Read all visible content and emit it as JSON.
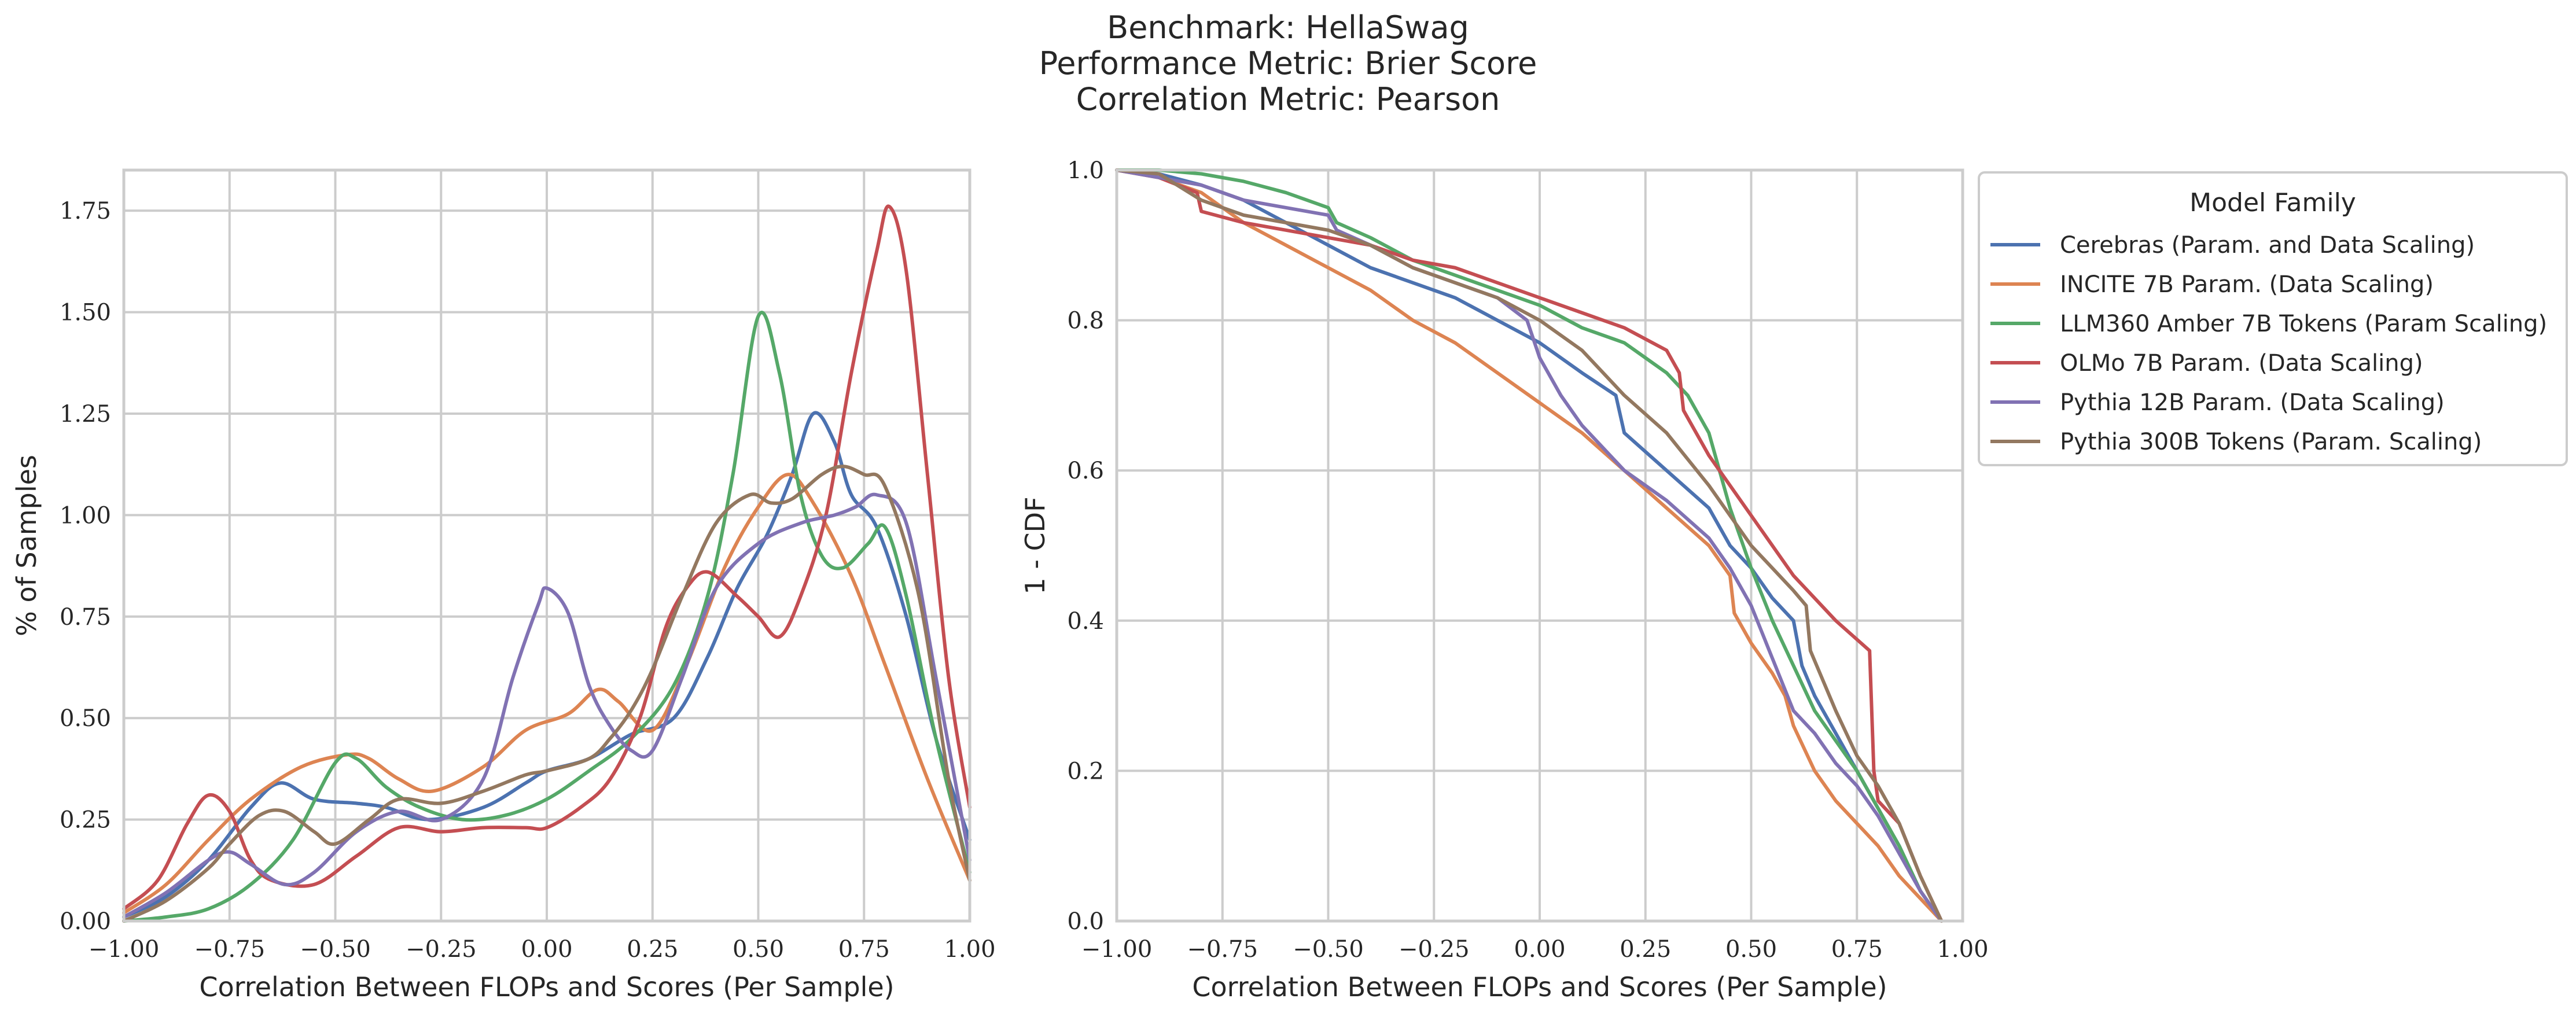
{
  "figure": {
    "title_lines": [
      "Benchmark: HellaSwag",
      "Performance Metric: Brier Score",
      "Correlation Metric: Pearson"
    ]
  },
  "colors": {
    "Cerebras (Param. and Data Scaling)": "#4c72b0",
    "INCITE 7B Param. (Data Scaling)": "#dd8452",
    "LLM360 Amber 7B Tokens (Param Scaling)": "#55a868",
    "OLMo 7B Param. (Data Scaling)": "#c44e52",
    "Pythia 12B Param. (Data Scaling)": "#8172b3",
    "Pythia 300B Tokens (Param. Scaling)": "#937860"
  },
  "legend": {
    "title": "Model Family",
    "placement": "right of second panel"
  },
  "chart_data": [
    {
      "type": "line",
      "xlabel": "Correlation Between FLOPs and Scores (Per Sample)",
      "ylabel": "% of Samples",
      "xlim": [
        -1.0,
        1.0
      ],
      "ylim": [
        0.0,
        1.85
      ],
      "xticks": [
        -1.0,
        -0.75,
        -0.5,
        -0.25,
        0.0,
        0.25,
        0.5,
        0.75,
        1.0
      ],
      "xtick_labels": [
        "−1.00",
        "−0.75",
        "−0.50",
        "−0.25",
        "0.00",
        "0.25",
        "0.50",
        "0.75",
        "1.00"
      ],
      "yticks": [
        0.0,
        0.25,
        0.5,
        0.75,
        1.0,
        1.25,
        1.5,
        1.75
      ],
      "ytick_labels": [
        "0.00",
        "0.25",
        "0.50",
        "0.75",
        "1.00",
        "1.25",
        "1.50",
        "1.75"
      ],
      "grid": true,
      "series": [
        {
          "name": "Cerebras (Param. and Data Scaling)",
          "x": [
            -1.0,
            -0.9,
            -0.8,
            -0.7,
            -0.63,
            -0.55,
            -0.45,
            -0.38,
            -0.28,
            -0.15,
            -0.05,
            0.0,
            0.1,
            0.2,
            0.3,
            0.38,
            0.45,
            0.52,
            0.58,
            0.63,
            0.68,
            0.72,
            0.78,
            0.85,
            0.92,
            1.0
          ],
          "y": [
            0.01,
            0.06,
            0.15,
            0.28,
            0.34,
            0.3,
            0.29,
            0.28,
            0.25,
            0.28,
            0.34,
            0.37,
            0.4,
            0.46,
            0.5,
            0.65,
            0.82,
            0.95,
            1.1,
            1.25,
            1.18,
            1.05,
            0.97,
            0.75,
            0.45,
            0.2
          ]
        },
        {
          "name": "INCITE 7B Param. (Data Scaling)",
          "x": [
            -1.0,
            -0.9,
            -0.8,
            -0.7,
            -0.58,
            -0.47,
            -0.42,
            -0.35,
            -0.27,
            -0.15,
            -0.05,
            0.05,
            0.12,
            0.17,
            0.25,
            0.33,
            0.42,
            0.5,
            0.57,
            0.63,
            0.72,
            0.8,
            0.9,
            1.0
          ],
          "y": [
            0.02,
            0.09,
            0.2,
            0.3,
            0.38,
            0.41,
            0.4,
            0.35,
            0.32,
            0.38,
            0.47,
            0.51,
            0.57,
            0.54,
            0.47,
            0.63,
            0.87,
            1.02,
            1.1,
            1.03,
            0.85,
            0.63,
            0.35,
            0.1
          ]
        },
        {
          "name": "LLM360 Amber 7B Tokens (Param Scaling)",
          "x": [
            -1.0,
            -0.9,
            -0.8,
            -0.7,
            -0.6,
            -0.5,
            -0.45,
            -0.38,
            -0.3,
            -0.2,
            -0.1,
            0.0,
            0.1,
            0.2,
            0.3,
            0.38,
            0.44,
            0.5,
            0.55,
            0.6,
            0.65,
            0.7,
            0.76,
            0.8,
            0.85,
            0.92,
            1.0
          ],
          "y": [
            0.0,
            0.01,
            0.03,
            0.09,
            0.2,
            0.39,
            0.4,
            0.33,
            0.28,
            0.25,
            0.26,
            0.3,
            0.37,
            0.45,
            0.58,
            0.8,
            1.1,
            1.49,
            1.35,
            1.05,
            0.9,
            0.87,
            0.93,
            0.97,
            0.8,
            0.45,
            0.12
          ]
        },
        {
          "name": "OLMo 7B Param. (Data Scaling)",
          "x": [
            -1.0,
            -0.92,
            -0.85,
            -0.8,
            -0.75,
            -0.7,
            -0.65,
            -0.55,
            -0.45,
            -0.35,
            -0.25,
            -0.15,
            -0.05,
            0.0,
            0.08,
            0.15,
            0.22,
            0.28,
            0.33,
            0.38,
            0.45,
            0.5,
            0.55,
            0.6,
            0.66,
            0.72,
            0.78,
            0.81,
            0.85,
            0.9,
            0.95,
            1.0
          ],
          "y": [
            0.03,
            0.1,
            0.24,
            0.31,
            0.27,
            0.15,
            0.1,
            0.09,
            0.16,
            0.23,
            0.22,
            0.23,
            0.23,
            0.23,
            0.28,
            0.35,
            0.5,
            0.72,
            0.82,
            0.86,
            0.8,
            0.75,
            0.7,
            0.8,
            1.0,
            1.35,
            1.65,
            1.76,
            1.6,
            1.1,
            0.6,
            0.28
          ]
        },
        {
          "name": "Pythia 12B Param. (Data Scaling)",
          "x": [
            -1.0,
            -0.9,
            -0.8,
            -0.75,
            -0.7,
            -0.62,
            -0.55,
            -0.45,
            -0.35,
            -0.25,
            -0.15,
            -0.08,
            -0.02,
            0.0,
            0.05,
            0.1,
            0.15,
            0.2,
            0.25,
            0.32,
            0.4,
            0.5,
            0.6,
            0.68,
            0.73,
            0.78,
            0.85,
            0.92,
            1.0
          ],
          "y": [
            0.01,
            0.07,
            0.15,
            0.17,
            0.14,
            0.09,
            0.12,
            0.22,
            0.27,
            0.25,
            0.35,
            0.6,
            0.78,
            0.82,
            0.76,
            0.58,
            0.48,
            0.42,
            0.42,
            0.6,
            0.82,
            0.93,
            0.98,
            1.0,
            1.02,
            1.05,
            0.98,
            0.6,
            0.15
          ]
        },
        {
          "name": "Pythia 300B Tokens (Param. Scaling)",
          "x": [
            -1.0,
            -0.9,
            -0.8,
            -0.75,
            -0.68,
            -0.62,
            -0.55,
            -0.5,
            -0.42,
            -0.35,
            -0.25,
            -0.15,
            -0.05,
            0.0,
            0.1,
            0.15,
            0.2,
            0.25,
            0.32,
            0.4,
            0.48,
            0.53,
            0.58,
            0.65,
            0.7,
            0.75,
            0.8,
            0.88,
            0.95,
            1.0
          ],
          "y": [
            0.0,
            0.05,
            0.13,
            0.19,
            0.26,
            0.27,
            0.22,
            0.19,
            0.25,
            0.3,
            0.29,
            0.32,
            0.36,
            0.37,
            0.4,
            0.45,
            0.52,
            0.62,
            0.8,
            0.98,
            1.05,
            1.03,
            1.04,
            1.1,
            1.12,
            1.1,
            1.07,
            0.8,
            0.35,
            0.1
          ]
        }
      ]
    },
    {
      "type": "line",
      "xlabel": "Correlation Between FLOPs and Scores (Per Sample)",
      "ylabel": "1 - CDF",
      "xlim": [
        -1.0,
        1.0
      ],
      "ylim": [
        0.0,
        1.0
      ],
      "xticks": [
        -1.0,
        -0.75,
        -0.5,
        -0.25,
        0.0,
        0.25,
        0.5,
        0.75,
        1.0
      ],
      "xtick_labels": [
        "−1.00",
        "−0.75",
        "−0.50",
        "−0.25",
        "0.00",
        "0.25",
        "0.50",
        "0.75",
        "1.00"
      ],
      "yticks": [
        0.0,
        0.2,
        0.4,
        0.6,
        0.8,
        1.0
      ],
      "ytick_labels": [
        "0.0",
        "0.2",
        "0.4",
        "0.6",
        "0.8",
        "1.0"
      ],
      "grid": true,
      "series": [
        {
          "name": "Cerebras (Param. and Data Scaling)",
          "x": [
            -1.0,
            -0.9,
            -0.8,
            -0.7,
            -0.6,
            -0.5,
            -0.4,
            -0.3,
            -0.2,
            -0.1,
            0.0,
            0.1,
            0.18,
            0.2,
            0.3,
            0.4,
            0.45,
            0.5,
            0.55,
            0.6,
            0.62,
            0.65,
            0.7,
            0.75,
            0.8,
            0.85,
            0.9,
            0.95
          ],
          "y": [
            1.0,
            0.995,
            0.98,
            0.96,
            0.93,
            0.9,
            0.87,
            0.85,
            0.83,
            0.8,
            0.77,
            0.73,
            0.7,
            0.65,
            0.6,
            0.55,
            0.5,
            0.47,
            0.43,
            0.4,
            0.34,
            0.3,
            0.25,
            0.2,
            0.15,
            0.1,
            0.04,
            0.0
          ]
        },
        {
          "name": "INCITE 7B Param. (Data Scaling)",
          "x": [
            -1.0,
            -0.9,
            -0.8,
            -0.7,
            -0.6,
            -0.5,
            -0.4,
            -0.3,
            -0.2,
            -0.1,
            0.0,
            0.1,
            0.2,
            0.3,
            0.4,
            0.45,
            0.46,
            0.5,
            0.55,
            0.58,
            0.6,
            0.65,
            0.7,
            0.8,
            0.85,
            0.9,
            0.95
          ],
          "y": [
            1.0,
            0.99,
            0.97,
            0.93,
            0.9,
            0.87,
            0.84,
            0.8,
            0.77,
            0.73,
            0.69,
            0.65,
            0.6,
            0.55,
            0.5,
            0.46,
            0.41,
            0.37,
            0.33,
            0.3,
            0.26,
            0.2,
            0.16,
            0.1,
            0.06,
            0.03,
            0.0
          ]
        },
        {
          "name": "LLM360 Amber 7B Tokens (Param Scaling)",
          "x": [
            -1.0,
            -0.9,
            -0.8,
            -0.7,
            -0.6,
            -0.5,
            -0.48,
            -0.4,
            -0.3,
            -0.2,
            -0.1,
            0.0,
            0.1,
            0.2,
            0.25,
            0.3,
            0.35,
            0.4,
            0.45,
            0.5,
            0.55,
            0.6,
            0.65,
            0.7,
            0.75,
            0.8,
            0.85,
            0.9,
            0.95
          ],
          "y": [
            1.0,
            1.0,
            0.995,
            0.985,
            0.97,
            0.95,
            0.93,
            0.91,
            0.88,
            0.86,
            0.84,
            0.82,
            0.79,
            0.77,
            0.75,
            0.73,
            0.7,
            0.65,
            0.55,
            0.47,
            0.4,
            0.34,
            0.28,
            0.24,
            0.2,
            0.15,
            0.1,
            0.04,
            0.0
          ]
        },
        {
          "name": "OLMo 7B Param. (Data Scaling)",
          "x": [
            -1.0,
            -0.9,
            -0.81,
            -0.8,
            -0.7,
            -0.6,
            -0.5,
            -0.4,
            -0.3,
            -0.2,
            -0.1,
            0.0,
            0.1,
            0.2,
            0.3,
            0.33,
            0.34,
            0.4,
            0.5,
            0.6,
            0.7,
            0.78,
            0.79,
            0.8,
            0.85,
            0.9,
            0.95
          ],
          "y": [
            1.0,
            0.99,
            0.97,
            0.945,
            0.93,
            0.92,
            0.91,
            0.9,
            0.88,
            0.87,
            0.85,
            0.83,
            0.81,
            0.79,
            0.76,
            0.73,
            0.68,
            0.62,
            0.54,
            0.46,
            0.4,
            0.36,
            0.2,
            0.16,
            0.13,
            0.06,
            0.0
          ]
        },
        {
          "name": "Pythia 12B Param. (Data Scaling)",
          "x": [
            -1.0,
            -0.9,
            -0.8,
            -0.7,
            -0.6,
            -0.5,
            -0.48,
            -0.4,
            -0.3,
            -0.2,
            -0.1,
            -0.03,
            0.0,
            0.05,
            0.1,
            0.2,
            0.3,
            0.4,
            0.45,
            0.5,
            0.55,
            0.6,
            0.65,
            0.7,
            0.75,
            0.8,
            0.85,
            0.9,
            0.95
          ],
          "y": [
            1.0,
            0.99,
            0.98,
            0.96,
            0.95,
            0.94,
            0.92,
            0.9,
            0.87,
            0.85,
            0.83,
            0.8,
            0.75,
            0.7,
            0.66,
            0.6,
            0.56,
            0.51,
            0.47,
            0.42,
            0.35,
            0.28,
            0.25,
            0.21,
            0.18,
            0.14,
            0.09,
            0.04,
            0.0
          ]
        },
        {
          "name": "Pythia 300B Tokens (Param. Scaling)",
          "x": [
            -1.0,
            -0.9,
            -0.8,
            -0.7,
            -0.6,
            -0.5,
            -0.4,
            -0.3,
            -0.2,
            -0.1,
            0.0,
            0.1,
            0.2,
            0.3,
            0.4,
            0.5,
            0.6,
            0.63,
            0.64,
            0.7,
            0.75,
            0.8,
            0.85,
            0.9,
            0.95
          ],
          "y": [
            1.0,
            0.995,
            0.96,
            0.94,
            0.93,
            0.92,
            0.9,
            0.87,
            0.85,
            0.83,
            0.8,
            0.76,
            0.7,
            0.65,
            0.58,
            0.5,
            0.44,
            0.42,
            0.36,
            0.28,
            0.22,
            0.18,
            0.13,
            0.06,
            0.0
          ]
        }
      ]
    }
  ]
}
